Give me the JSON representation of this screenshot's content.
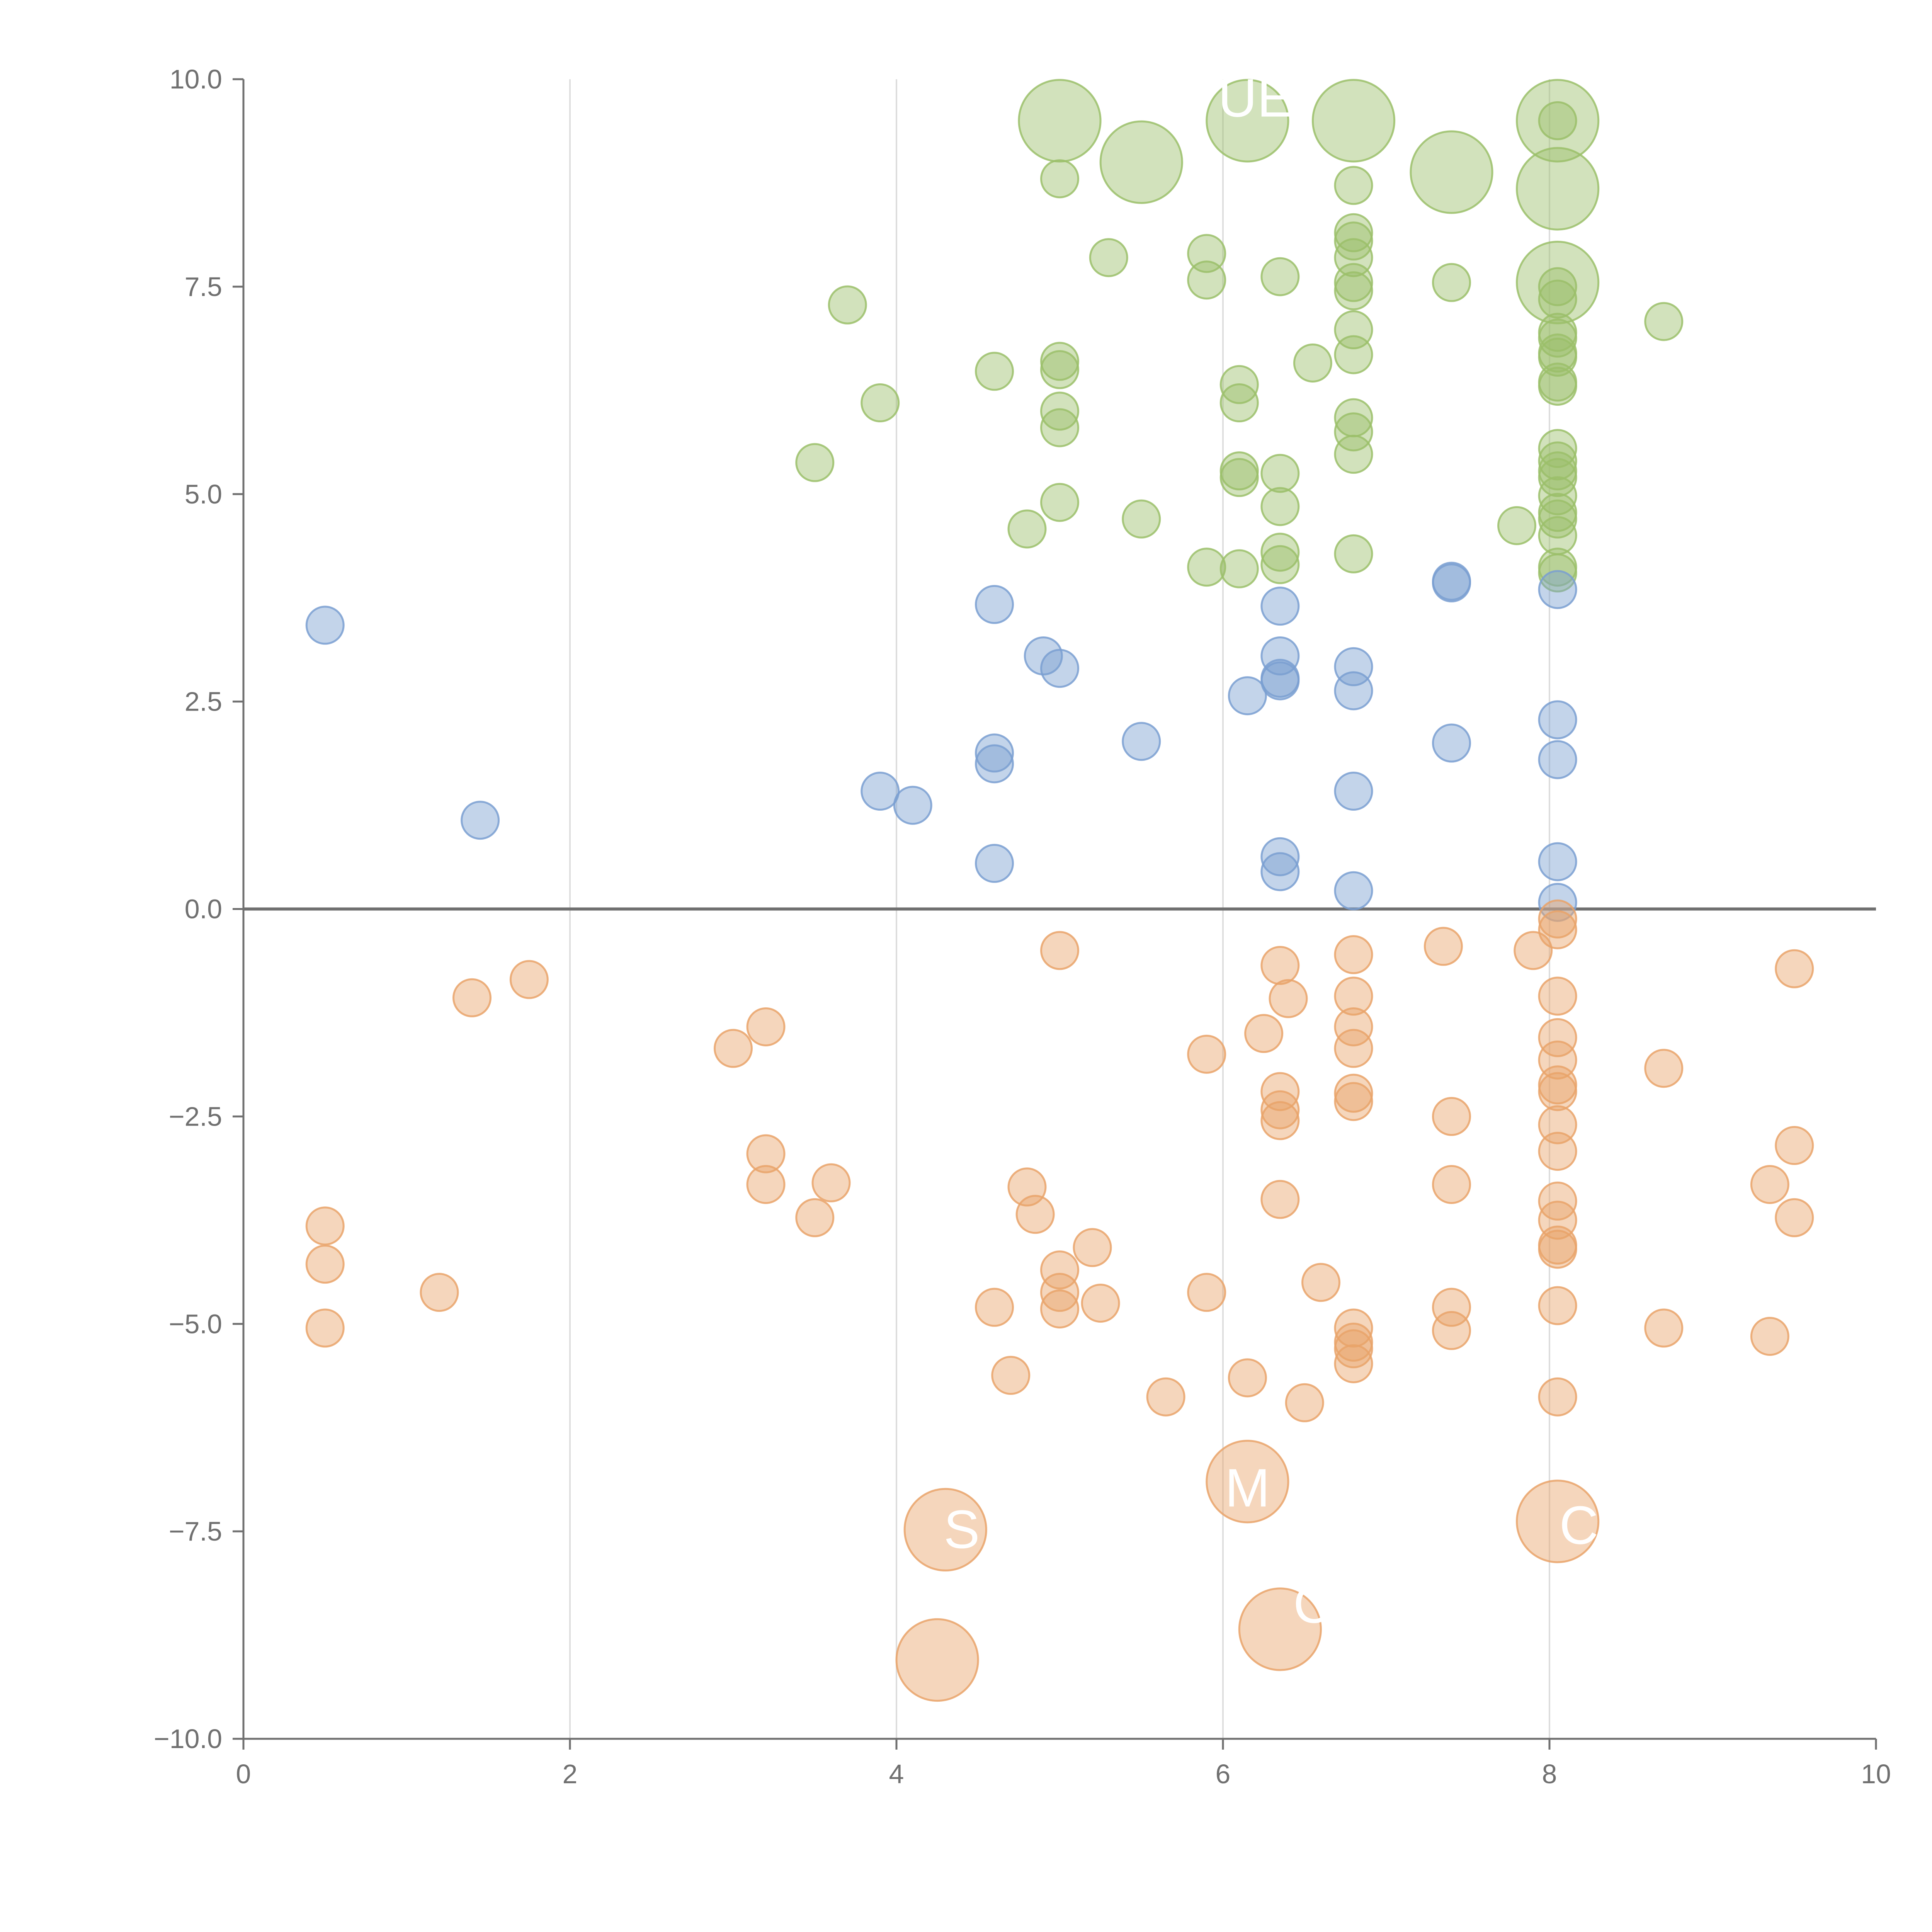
{
  "chart_data": {
    "type": "scatter",
    "title": "",
    "xlabel": "",
    "ylabel": "",
    "xlim": [
      0,
      10
    ],
    "ylim": [
      -10,
      10
    ],
    "x_ticks": [
      0,
      2,
      4,
      6,
      8,
      10
    ],
    "y_ticks": [
      10,
      7.5,
      5,
      2.5,
      0,
      -2.5,
      -5,
      -7.5,
      -10
    ],
    "x_tick_labels": [
      "0",
      "2",
      "4",
      "6",
      "8",
      "10"
    ],
    "y_tick_labels": [
      "10.0",
      "7.5",
      "5.0",
      "2.5",
      "0.0",
      "−2.5",
      "−5.0",
      "−7.5",
      "−10.0"
    ],
    "vertical_gridlines_at": [
      2,
      4,
      6,
      8
    ],
    "zero_line": true,
    "legend": "none",
    "colors": {
      "green": "#9bbf6a",
      "blue": "#7a9fd1",
      "orange": "#e9a36a",
      "axis": "#707070",
      "grid": "#dddddd"
    },
    "series": [
      {
        "color_key": "green",
        "points": [
          [
            3.5,
            5.38,
            1
          ],
          [
            3.7,
            7.28,
            1
          ],
          [
            3.9,
            6.1,
            1
          ],
          [
            4.6,
            6.48,
            1
          ],
          [
            4.8,
            4.58,
            1
          ],
          [
            5.0,
            8.8,
            1
          ],
          [
            5.0,
            6.6,
            1
          ],
          [
            5.0,
            6.5,
            1
          ],
          [
            5.0,
            6.0,
            1
          ],
          [
            5.0,
            5.8,
            1
          ],
          [
            5.0,
            4.9,
            1
          ],
          [
            5.3,
            7.85,
            1
          ],
          [
            5.5,
            4.7,
            1
          ],
          [
            5.9,
            7.9,
            1
          ],
          [
            5.9,
            7.58,
            1
          ],
          [
            5.9,
            4.12,
            1
          ],
          [
            6.1,
            6.32,
            1
          ],
          [
            6.1,
            6.1,
            1
          ],
          [
            6.1,
            5.28,
            1
          ],
          [
            6.1,
            5.2,
            1
          ],
          [
            6.1,
            4.1,
            1
          ],
          [
            6.35,
            7.62,
            1
          ],
          [
            6.35,
            5.25,
            1
          ],
          [
            6.35,
            4.85,
            1
          ],
          [
            6.35,
            4.3,
            1
          ],
          [
            6.35,
            4.15,
            1
          ],
          [
            6.55,
            6.58,
            1
          ],
          [
            6.8,
            8.72,
            1
          ],
          [
            6.8,
            8.15,
            1
          ],
          [
            6.8,
            8.05,
            1
          ],
          [
            6.8,
            7.85,
            1
          ],
          [
            6.8,
            7.55,
            1
          ],
          [
            6.8,
            7.45,
            1
          ],
          [
            6.8,
            6.98,
            1
          ],
          [
            6.8,
            6.68,
            1
          ],
          [
            6.8,
            5.92,
            1
          ],
          [
            6.8,
            5.75,
            1
          ],
          [
            6.8,
            5.48,
            1
          ],
          [
            6.8,
            4.28,
            1
          ],
          [
            7.4,
            7.55,
            1
          ],
          [
            7.8,
            4.62,
            1
          ],
          [
            8.05,
            9.5,
            1
          ],
          [
            8.05,
            7.5,
            1
          ],
          [
            8.05,
            7.35,
            1
          ],
          [
            8.05,
            6.95,
            1
          ],
          [
            8.05,
            6.88,
            1
          ],
          [
            8.05,
            6.7,
            1
          ],
          [
            8.05,
            6.65,
            1
          ],
          [
            8.05,
            6.35,
            1
          ],
          [
            8.05,
            6.3,
            1
          ],
          [
            8.05,
            5.55,
            1
          ],
          [
            8.05,
            5.4,
            1
          ],
          [
            8.05,
            5.28,
            1
          ],
          [
            8.05,
            5.2,
            1
          ],
          [
            8.05,
            4.98,
            1
          ],
          [
            8.05,
            4.78,
            1
          ],
          [
            8.05,
            4.7,
            1
          ],
          [
            8.05,
            4.5,
            1
          ],
          [
            8.05,
            4.12,
            1
          ],
          [
            8.05,
            4.05,
            1
          ],
          [
            8.7,
            7.08,
            1
          ],
          [
            5.0,
            9.5,
            2.2
          ],
          [
            5.5,
            9.0,
            2.2
          ],
          [
            6.15,
            9.5,
            2.2
          ],
          [
            6.8,
            9.5,
            2.2
          ],
          [
            7.4,
            8.88,
            2.2
          ],
          [
            8.05,
            9.5,
            2.2
          ],
          [
            8.05,
            8.68,
            2.2
          ],
          [
            8.05,
            7.55,
            2.2
          ]
        ]
      },
      {
        "color_key": "blue",
        "points": [
          [
            0.5,
            3.42,
            1
          ],
          [
            1.45,
            1.07,
            1
          ],
          [
            3.9,
            1.42,
            1
          ],
          [
            4.1,
            1.25,
            1
          ],
          [
            4.6,
            3.67,
            1
          ],
          [
            4.6,
            1.88,
            1
          ],
          [
            4.6,
            1.75,
            1
          ],
          [
            4.6,
            0.55,
            1
          ],
          [
            4.9,
            3.05,
            1
          ],
          [
            5.0,
            2.9,
            1
          ],
          [
            5.5,
            2.02,
            1
          ],
          [
            6.15,
            2.57,
            1
          ],
          [
            6.35,
            3.65,
            1
          ],
          [
            6.35,
            3.05,
            1
          ],
          [
            6.35,
            2.78,
            1
          ],
          [
            6.35,
            2.75,
            1
          ],
          [
            6.35,
            0.63,
            1
          ],
          [
            6.35,
            0.45,
            1
          ],
          [
            6.8,
            2.92,
            1
          ],
          [
            6.8,
            2.63,
            1
          ],
          [
            6.8,
            1.42,
            1
          ],
          [
            6.8,
            0.22,
            1
          ],
          [
            7.4,
            3.95,
            1
          ],
          [
            7.4,
            3.93,
            1
          ],
          [
            7.4,
            2.0,
            1
          ],
          [
            8.05,
            3.85,
            1
          ],
          [
            8.05,
            2.28,
            1
          ],
          [
            8.05,
            1.8,
            1
          ],
          [
            8.05,
            0.57,
            1
          ],
          [
            8.05,
            0.08,
            1
          ]
        ]
      },
      {
        "color_key": "orange",
        "points": [
          [
            0.5,
            -3.82,
            1
          ],
          [
            0.5,
            -4.28,
            1
          ],
          [
            0.5,
            -5.05,
            1
          ],
          [
            1.2,
            -4.62,
            1
          ],
          [
            1.4,
            -1.07,
            1
          ],
          [
            1.75,
            -0.85,
            1
          ],
          [
            3.0,
            -1.68,
            1
          ],
          [
            3.2,
            -1.42,
            1
          ],
          [
            3.2,
            -2.95,
            1
          ],
          [
            3.2,
            -3.32,
            1
          ],
          [
            3.5,
            -3.72,
            1
          ],
          [
            3.6,
            -3.3,
            1
          ],
          [
            4.6,
            -4.8,
            1
          ],
          [
            4.7,
            -5.62,
            1
          ],
          [
            4.8,
            -3.35,
            1
          ],
          [
            4.85,
            -3.68,
            1
          ],
          [
            5.0,
            -0.5,
            1
          ],
          [
            5.0,
            -4.35,
            1
          ],
          [
            5.0,
            -4.62,
            1
          ],
          [
            5.0,
            -4.82,
            1
          ],
          [
            5.2,
            -4.08,
            1
          ],
          [
            5.25,
            -4.75,
            1
          ],
          [
            5.65,
            -5.88,
            1
          ],
          [
            5.9,
            -1.75,
            1
          ],
          [
            5.9,
            -4.62,
            1
          ],
          [
            6.15,
            -5.65,
            1
          ],
          [
            6.25,
            -1.5,
            1
          ],
          [
            6.35,
            -0.68,
            1
          ],
          [
            6.35,
            -2.2,
            1
          ],
          [
            6.35,
            -2.42,
            1
          ],
          [
            6.35,
            -2.55,
            1
          ],
          [
            6.35,
            -3.5,
            1
          ],
          [
            6.4,
            -1.08,
            1
          ],
          [
            6.5,
            -5.95,
            1
          ],
          [
            6.6,
            -4.5,
            1
          ],
          [
            6.8,
            -0.55,
            1
          ],
          [
            6.8,
            -1.05,
            1
          ],
          [
            6.8,
            -1.42,
            1
          ],
          [
            6.8,
            -1.68,
            1
          ],
          [
            6.8,
            -2.22,
            1
          ],
          [
            6.8,
            -2.32,
            1
          ],
          [
            6.8,
            -5.05,
            1
          ],
          [
            6.8,
            -5.22,
            1
          ],
          [
            6.8,
            -5.3,
            1
          ],
          [
            6.8,
            -5.48,
            1
          ],
          [
            7.35,
            -0.45,
            1
          ],
          [
            7.4,
            -2.5,
            1
          ],
          [
            7.4,
            -3.32,
            1
          ],
          [
            7.4,
            -4.8,
            1
          ],
          [
            7.4,
            -5.08,
            1
          ],
          [
            7.9,
            -0.5,
            1
          ],
          [
            8.05,
            -0.12,
            1
          ],
          [
            8.05,
            -0.25,
            1
          ],
          [
            8.05,
            -1.05,
            1
          ],
          [
            8.05,
            -1.55,
            1
          ],
          [
            8.05,
            -1.82,
            1
          ],
          [
            8.05,
            -2.12,
            1
          ],
          [
            8.05,
            -2.2,
            1
          ],
          [
            8.05,
            -2.6,
            1
          ],
          [
            8.05,
            -2.92,
            1
          ],
          [
            8.05,
            -3.52,
            1
          ],
          [
            8.05,
            -3.75,
            1
          ],
          [
            8.05,
            -4.05,
            1
          ],
          [
            8.05,
            -4.1,
            1
          ],
          [
            8.05,
            -4.78,
            1
          ],
          [
            8.05,
            -5.88,
            1
          ],
          [
            8.7,
            -1.92,
            1
          ],
          [
            8.7,
            -5.05,
            1
          ],
          [
            9.35,
            -3.32,
            1
          ],
          [
            9.35,
            -5.15,
            1
          ],
          [
            9.5,
            -0.72,
            1
          ],
          [
            9.5,
            -2.85,
            1
          ],
          [
            9.5,
            -3.72,
            1
          ],
          [
            4.3,
            -7.48,
            2.2
          ],
          [
            4.25,
            -9.05,
            2.2
          ],
          [
            6.15,
            -6.9,
            2.2
          ],
          [
            6.35,
            -8.68,
            2.2
          ],
          [
            8.05,
            -7.38,
            2.2
          ]
        ]
      }
    ],
    "point_labels": [
      {
        "text": "UE",
        "x": 6.2,
        "y": 9.55
      },
      {
        "text": "M",
        "x": 6.15,
        "y": -7.2
      },
      {
        "text": "C",
        "x": 6.55,
        "y": -8.6
      },
      {
        "text": "S",
        "x": 4.4,
        "y": -7.7
      },
      {
        "text": "C",
        "x": 8.18,
        "y": -7.65
      }
    ]
  }
}
